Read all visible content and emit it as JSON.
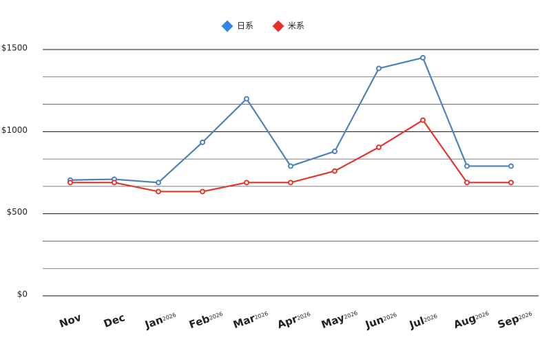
{
  "chart_data": {
    "type": "line",
    "categories": [
      "Nov",
      "Dec",
      "Jan",
      "Feb",
      "Mar",
      "Apr",
      "May",
      "Jun",
      "Jul",
      "Aug",
      "Sep"
    ],
    "category_years": [
      null,
      null,
      "2026",
      "2026",
      "2026",
      "2026",
      "2026",
      "2026",
      "2026",
      "2026",
      "2026"
    ],
    "series": [
      {
        "name": "日系",
        "color": "#4a80bb",
        "legend_color": "#2f86ee",
        "values": [
          705,
          710,
          690,
          935,
          1200,
          790,
          880,
          1385,
          1450,
          790,
          790
        ]
      },
      {
        "name": "米系",
        "color": "#e3342c",
        "legend_color": "#e8302a",
        "values": [
          690,
          690,
          635,
          635,
          690,
          690,
          760,
          905,
          1070,
          690,
          690
        ]
      }
    ],
    "ylim": [
      0,
      1500
    ],
    "yticks": [
      {
        "value": 0,
        "label": "$0"
      },
      {
        "value": 500,
        "label": "$500"
      },
      {
        "value": 1000,
        "label": "$1000"
      },
      {
        "value": 1500,
        "label": "$1500"
      }
    ],
    "grid": true,
    "legend": "top"
  }
}
